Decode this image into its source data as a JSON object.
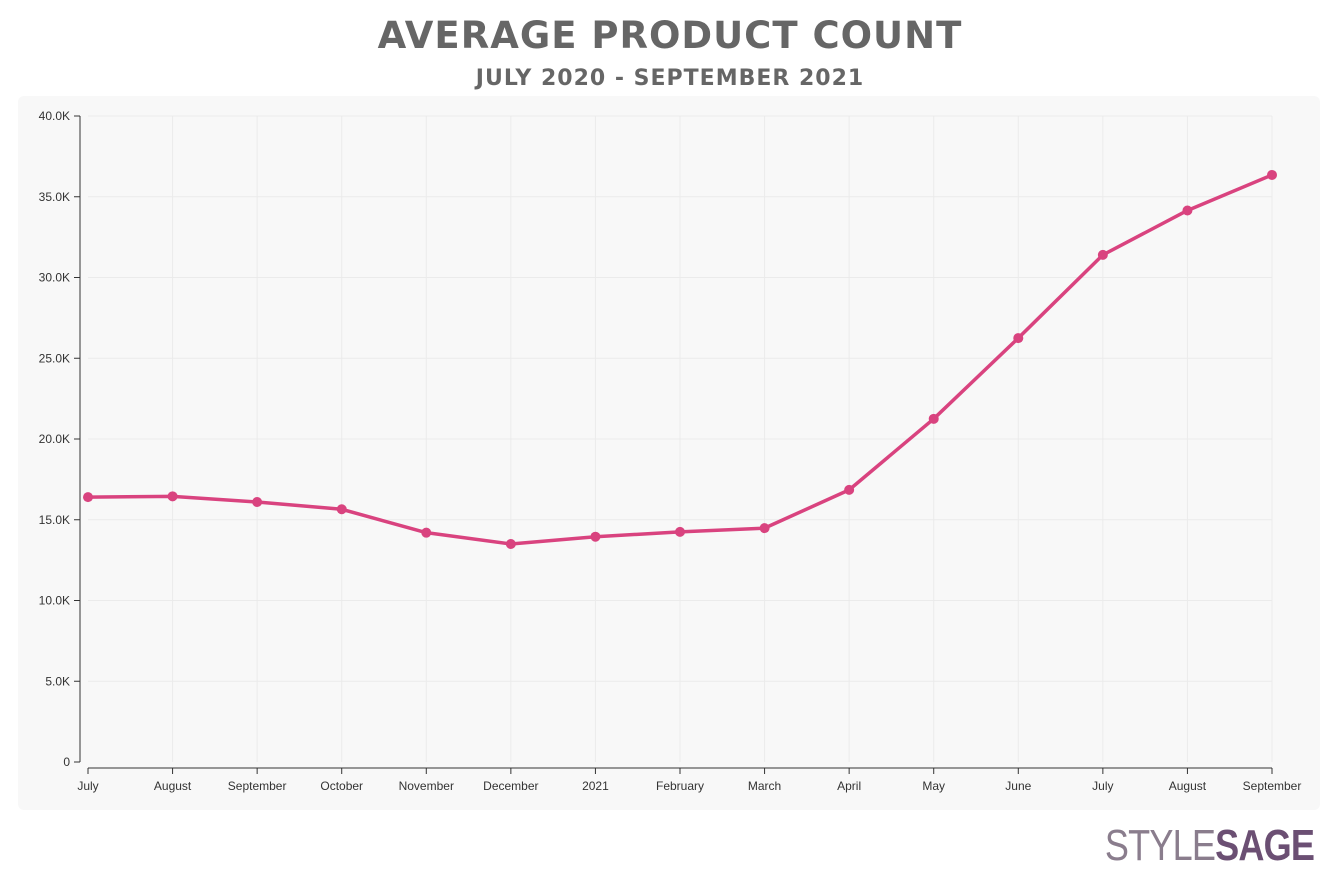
{
  "header": {
    "title": "AVERAGE PRODUCT COUNT",
    "subtitle": "JULY 2020 - SEPTEMBER 2021"
  },
  "brand": {
    "part1": "STYLE",
    "part2": "SAGE"
  },
  "colors": {
    "line": "#d9437f",
    "text": "#666666",
    "panel": "#f8f8f8"
  },
  "chart_data": {
    "type": "line",
    "title": "AVERAGE PRODUCT COUNT",
    "subtitle": "JULY 2020 - SEPTEMBER 2021",
    "xlabel": "",
    "ylabel": "",
    "categories": [
      "July",
      "August",
      "September",
      "October",
      "November",
      "December",
      "2021",
      "February",
      "March",
      "April",
      "May",
      "June",
      "July",
      "August",
      "September"
    ],
    "values": [
      16400,
      16450,
      16100,
      15650,
      14200,
      13500,
      13950,
      14250,
      14480,
      16850,
      21250,
      26250,
      31400,
      34150,
      36350
    ],
    "ylim": [
      0,
      40000
    ],
    "yticks": [
      0,
      5000,
      10000,
      15000,
      20000,
      25000,
      30000,
      35000,
      40000
    ],
    "ytick_labels": [
      "0",
      "5.0K",
      "10.0K",
      "15.0K",
      "20.0K",
      "25.0K",
      "30.0K",
      "35.0K",
      "40.0K"
    ],
    "grid": true,
    "legend": "none"
  }
}
